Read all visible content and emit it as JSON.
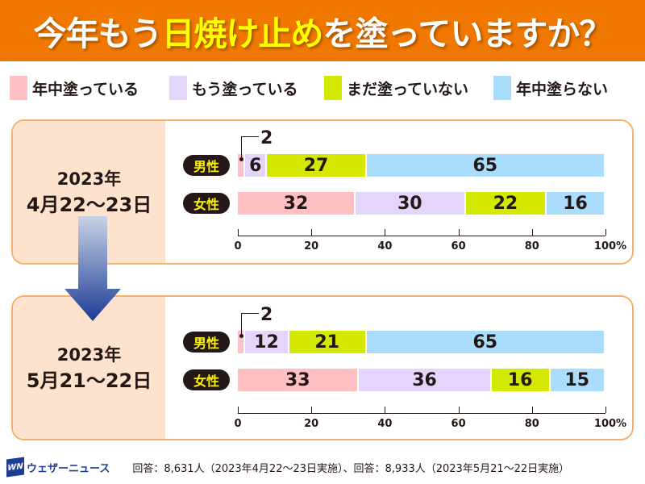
{
  "title": {
    "pre": "今年もう",
    "highlight": "日焼け止め",
    "post": "を塗っていますか？"
  },
  "legend": [
    {
      "label": "年中塗っている",
      "color": "#ffc0c4"
    },
    {
      "label": "もう塗っている",
      "color": "#e4d5fb"
    },
    {
      "label": "まだ塗っていない",
      "color": "#d4e800"
    },
    {
      "label": "年中塗らない",
      "color": "#aadcfb"
    }
  ],
  "chart_data": [
    {
      "type": "bar",
      "stacked": true,
      "orientation": "horizontal",
      "period": {
        "year": "2023年",
        "dates": "4月22～23日"
      },
      "categories": [
        "男性",
        "女性"
      ],
      "series": [
        {
          "name": "年中塗っている",
          "values": [
            2,
            32
          ]
        },
        {
          "name": "もう塗っている",
          "values": [
            6,
            30
          ]
        },
        {
          "name": "まだ塗っていない",
          "values": [
            27,
            22
          ]
        },
        {
          "name": "年中塗らない",
          "values": [
            65,
            16
          ]
        }
      ],
      "xlim": [
        0,
        100
      ],
      "xticks": [
        "0",
        "20",
        "40",
        "60",
        "80",
        "100%"
      ]
    },
    {
      "type": "bar",
      "stacked": true,
      "orientation": "horizontal",
      "period": {
        "year": "2023年",
        "dates": "5月21～22日"
      },
      "categories": [
        "男性",
        "女性"
      ],
      "series": [
        {
          "name": "年中塗っている",
          "values": [
            2,
            33
          ]
        },
        {
          "name": "もう塗っている",
          "values": [
            12,
            36
          ]
        },
        {
          "name": "まだ塗っていない",
          "values": [
            21,
            16
          ]
        },
        {
          "name": "年中塗らない",
          "values": [
            65,
            15
          ]
        }
      ],
      "xlim": [
        0,
        100
      ],
      "xticks": [
        "0",
        "20",
        "40",
        "60",
        "80",
        "100%"
      ]
    }
  ],
  "footer": {
    "logo_text": "ウェザーニュース",
    "logo_mark": "WN",
    "note": "回答：8,631人（2023年4月22～23日実施）、回答：8,933人（2023年5月21～22日実施）"
  }
}
